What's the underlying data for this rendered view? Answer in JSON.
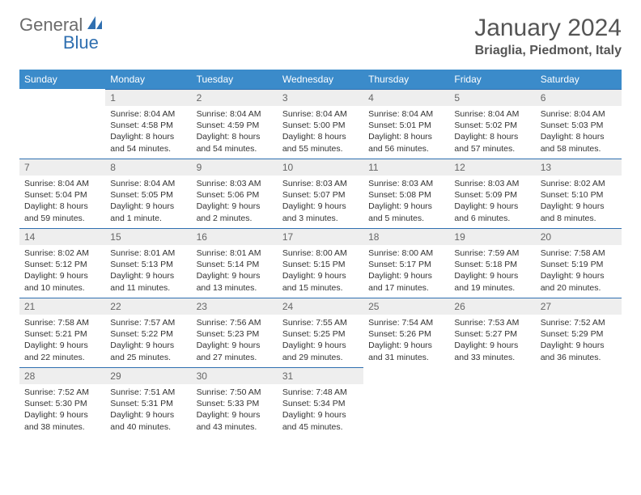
{
  "logo": {
    "text1": "General",
    "text2": "Blue"
  },
  "title": "January 2024",
  "location": "Briaglia, Piedmont, Italy",
  "colors": {
    "header_bg": "#3b8bca",
    "header_text": "#ffffff",
    "daynum_bg": "#eeeeee",
    "daynum_text": "#666666",
    "rule": "#2f6fb0",
    "logo_gray": "#6b6b6b",
    "logo_blue": "#2f6fb0"
  },
  "weekdays": [
    "Sunday",
    "Monday",
    "Tuesday",
    "Wednesday",
    "Thursday",
    "Friday",
    "Saturday"
  ],
  "weeks": [
    [
      {
        "blank": true
      },
      {
        "n": "1",
        "l1": "Sunrise: 8:04 AM",
        "l2": "Sunset: 4:58 PM",
        "l3": "Daylight: 8 hours",
        "l4": "and 54 minutes."
      },
      {
        "n": "2",
        "l1": "Sunrise: 8:04 AM",
        "l2": "Sunset: 4:59 PM",
        "l3": "Daylight: 8 hours",
        "l4": "and 54 minutes."
      },
      {
        "n": "3",
        "l1": "Sunrise: 8:04 AM",
        "l2": "Sunset: 5:00 PM",
        "l3": "Daylight: 8 hours",
        "l4": "and 55 minutes."
      },
      {
        "n": "4",
        "l1": "Sunrise: 8:04 AM",
        "l2": "Sunset: 5:01 PM",
        "l3": "Daylight: 8 hours",
        "l4": "and 56 minutes."
      },
      {
        "n": "5",
        "l1": "Sunrise: 8:04 AM",
        "l2": "Sunset: 5:02 PM",
        "l3": "Daylight: 8 hours",
        "l4": "and 57 minutes."
      },
      {
        "n": "6",
        "l1": "Sunrise: 8:04 AM",
        "l2": "Sunset: 5:03 PM",
        "l3": "Daylight: 8 hours",
        "l4": "and 58 minutes."
      }
    ],
    [
      {
        "n": "7",
        "l1": "Sunrise: 8:04 AM",
        "l2": "Sunset: 5:04 PM",
        "l3": "Daylight: 8 hours",
        "l4": "and 59 minutes."
      },
      {
        "n": "8",
        "l1": "Sunrise: 8:04 AM",
        "l2": "Sunset: 5:05 PM",
        "l3": "Daylight: 9 hours",
        "l4": "and 1 minute."
      },
      {
        "n": "9",
        "l1": "Sunrise: 8:03 AM",
        "l2": "Sunset: 5:06 PM",
        "l3": "Daylight: 9 hours",
        "l4": "and 2 minutes."
      },
      {
        "n": "10",
        "l1": "Sunrise: 8:03 AM",
        "l2": "Sunset: 5:07 PM",
        "l3": "Daylight: 9 hours",
        "l4": "and 3 minutes."
      },
      {
        "n": "11",
        "l1": "Sunrise: 8:03 AM",
        "l2": "Sunset: 5:08 PM",
        "l3": "Daylight: 9 hours",
        "l4": "and 5 minutes."
      },
      {
        "n": "12",
        "l1": "Sunrise: 8:03 AM",
        "l2": "Sunset: 5:09 PM",
        "l3": "Daylight: 9 hours",
        "l4": "and 6 minutes."
      },
      {
        "n": "13",
        "l1": "Sunrise: 8:02 AM",
        "l2": "Sunset: 5:10 PM",
        "l3": "Daylight: 9 hours",
        "l4": "and 8 minutes."
      }
    ],
    [
      {
        "n": "14",
        "l1": "Sunrise: 8:02 AM",
        "l2": "Sunset: 5:12 PM",
        "l3": "Daylight: 9 hours",
        "l4": "and 10 minutes."
      },
      {
        "n": "15",
        "l1": "Sunrise: 8:01 AM",
        "l2": "Sunset: 5:13 PM",
        "l3": "Daylight: 9 hours",
        "l4": "and 11 minutes."
      },
      {
        "n": "16",
        "l1": "Sunrise: 8:01 AM",
        "l2": "Sunset: 5:14 PM",
        "l3": "Daylight: 9 hours",
        "l4": "and 13 minutes."
      },
      {
        "n": "17",
        "l1": "Sunrise: 8:00 AM",
        "l2": "Sunset: 5:15 PM",
        "l3": "Daylight: 9 hours",
        "l4": "and 15 minutes."
      },
      {
        "n": "18",
        "l1": "Sunrise: 8:00 AM",
        "l2": "Sunset: 5:17 PM",
        "l3": "Daylight: 9 hours",
        "l4": "and 17 minutes."
      },
      {
        "n": "19",
        "l1": "Sunrise: 7:59 AM",
        "l2": "Sunset: 5:18 PM",
        "l3": "Daylight: 9 hours",
        "l4": "and 19 minutes."
      },
      {
        "n": "20",
        "l1": "Sunrise: 7:58 AM",
        "l2": "Sunset: 5:19 PM",
        "l3": "Daylight: 9 hours",
        "l4": "and 20 minutes."
      }
    ],
    [
      {
        "n": "21",
        "l1": "Sunrise: 7:58 AM",
        "l2": "Sunset: 5:21 PM",
        "l3": "Daylight: 9 hours",
        "l4": "and 22 minutes."
      },
      {
        "n": "22",
        "l1": "Sunrise: 7:57 AM",
        "l2": "Sunset: 5:22 PM",
        "l3": "Daylight: 9 hours",
        "l4": "and 25 minutes."
      },
      {
        "n": "23",
        "l1": "Sunrise: 7:56 AM",
        "l2": "Sunset: 5:23 PM",
        "l3": "Daylight: 9 hours",
        "l4": "and 27 minutes."
      },
      {
        "n": "24",
        "l1": "Sunrise: 7:55 AM",
        "l2": "Sunset: 5:25 PM",
        "l3": "Daylight: 9 hours",
        "l4": "and 29 minutes."
      },
      {
        "n": "25",
        "l1": "Sunrise: 7:54 AM",
        "l2": "Sunset: 5:26 PM",
        "l3": "Daylight: 9 hours",
        "l4": "and 31 minutes."
      },
      {
        "n": "26",
        "l1": "Sunrise: 7:53 AM",
        "l2": "Sunset: 5:27 PM",
        "l3": "Daylight: 9 hours",
        "l4": "and 33 minutes."
      },
      {
        "n": "27",
        "l1": "Sunrise: 7:52 AM",
        "l2": "Sunset: 5:29 PM",
        "l3": "Daylight: 9 hours",
        "l4": "and 36 minutes."
      }
    ],
    [
      {
        "n": "28",
        "l1": "Sunrise: 7:52 AM",
        "l2": "Sunset: 5:30 PM",
        "l3": "Daylight: 9 hours",
        "l4": "and 38 minutes."
      },
      {
        "n": "29",
        "l1": "Sunrise: 7:51 AM",
        "l2": "Sunset: 5:31 PM",
        "l3": "Daylight: 9 hours",
        "l4": "and 40 minutes."
      },
      {
        "n": "30",
        "l1": "Sunrise: 7:50 AM",
        "l2": "Sunset: 5:33 PM",
        "l3": "Daylight: 9 hours",
        "l4": "and 43 minutes."
      },
      {
        "n": "31",
        "l1": "Sunrise: 7:48 AM",
        "l2": "Sunset: 5:34 PM",
        "l3": "Daylight: 9 hours",
        "l4": "and 45 minutes."
      },
      {
        "blank": true
      },
      {
        "blank": true
      },
      {
        "blank": true
      }
    ]
  ]
}
